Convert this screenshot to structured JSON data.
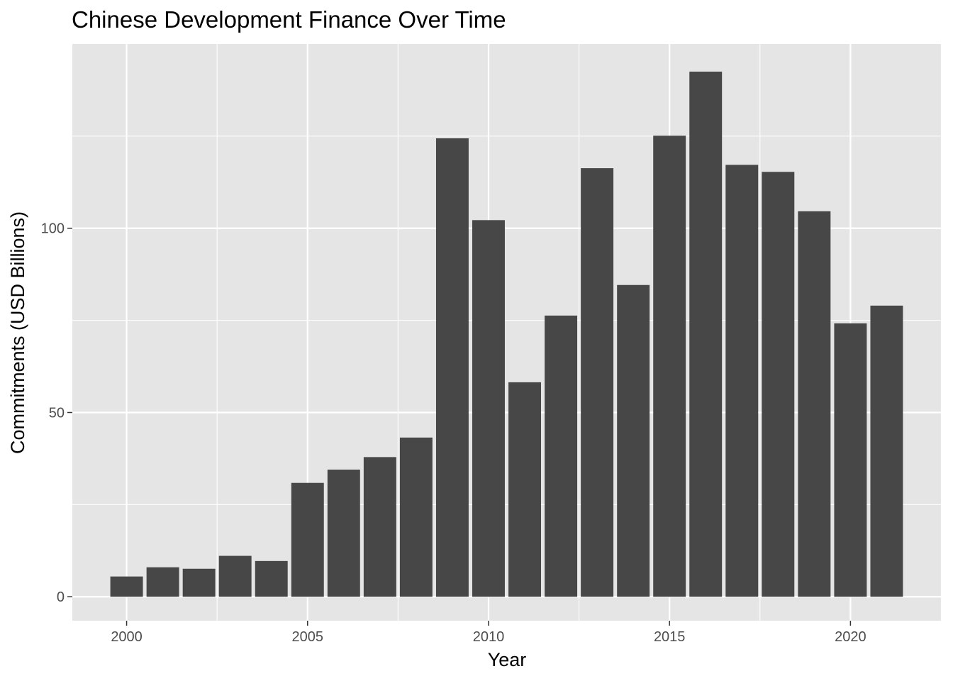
{
  "chart_data": {
    "type": "bar",
    "title": "Chinese Development Finance Over Time",
    "xlabel": "Year",
    "ylabel": "Commitments (USD Billions)",
    "x": [
      2000,
      2001,
      2002,
      2003,
      2004,
      2005,
      2006,
      2007,
      2008,
      2009,
      2010,
      2011,
      2012,
      2013,
      2014,
      2015,
      2016,
      2017,
      2018,
      2019,
      2020,
      2021
    ],
    "values": [
      5.5,
      8.0,
      7.6,
      11.1,
      9.7,
      30.9,
      34.5,
      37.9,
      43.2,
      124.4,
      102.2,
      58.2,
      76.3,
      116.3,
      84.6,
      125.1,
      142.5,
      117.2,
      115.3,
      104.6,
      74.2,
      79.0
    ],
    "x_ticks": [
      "2000",
      "2005",
      "2010",
      "2015",
      "2020"
    ],
    "y_ticks": [
      "0",
      "50",
      "100"
    ],
    "xlim": [
      1998.5,
      2022.5
    ],
    "ylim": [
      -6.5,
      150
    ],
    "grid": true,
    "legend": "none",
    "colors": {
      "bar": "#474747",
      "panel": "#e5e5e5",
      "grid": "#ffffff",
      "tick_label": "#4d4d4d",
      "tick_mark": "#333333"
    }
  }
}
